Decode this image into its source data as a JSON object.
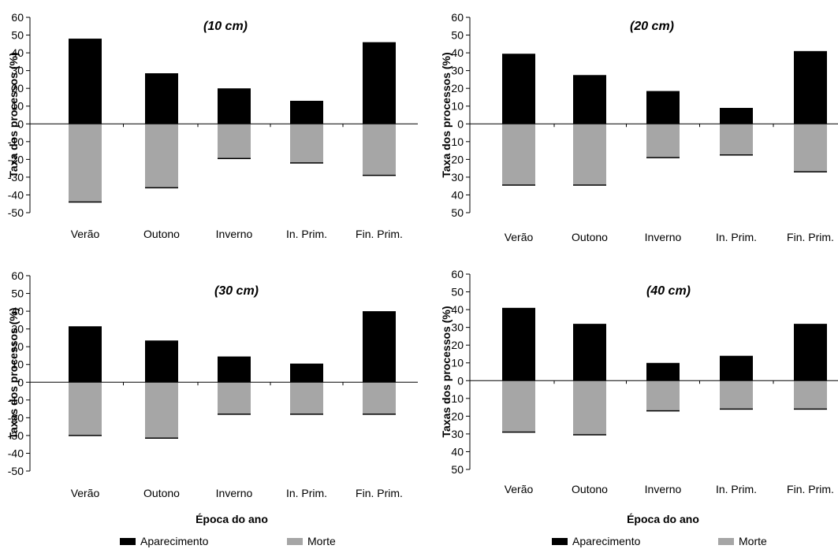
{
  "colors": {
    "appearance": "#000000",
    "death": "#a6a6a6",
    "axis": "#000000"
  },
  "shared_xlabel": "Época do ano",
  "legend": [
    {
      "label": "Aparecimento",
      "color": "#000000"
    },
    {
      "label": "Morte",
      "color": "#a6a6a6"
    }
  ],
  "chart_data": [
    {
      "type": "bar",
      "title": "(10 cm)",
      "ylabel": "Taxa dos processos (%)",
      "categories": [
        "Verão",
        "Outono",
        "Inverno",
        "In. Prim.",
        "Fin. Prim."
      ],
      "series": [
        {
          "name": "Aparecimento",
          "values": [
            48,
            28.5,
            20,
            13,
            46
          ]
        },
        {
          "name": "Morte",
          "values": [
            -44,
            -36,
            -19.5,
            -22,
            -29
          ]
        }
      ],
      "ylim": [
        -50,
        60
      ],
      "yticks": [
        60,
        50,
        40,
        30,
        20,
        10,
        0,
        -10,
        -20,
        -30,
        -40,
        -50
      ],
      "ytick_labels": [
        "60",
        "50",
        "40",
        "30",
        "20",
        "10",
        "0",
        "-10",
        "-20",
        "-30",
        "-40",
        "-50"
      ]
    },
    {
      "type": "bar",
      "title": "(20 cm)",
      "ylabel": "Taxa dos processos (%)",
      "categories": [
        "Verão",
        "Outono",
        "Inverno",
        "In. Prim.",
        "Fin. Prim."
      ],
      "series": [
        {
          "name": "Aparecimento",
          "values": [
            39.5,
            27.5,
            18.5,
            9,
            41
          ]
        },
        {
          "name": "Morte",
          "values": [
            -34.5,
            -34.5,
            -19,
            -17.5,
            -27
          ]
        }
      ],
      "ylim": [
        -50,
        60
      ],
      "yticks": [
        60,
        50,
        40,
        30,
        20,
        10,
        0,
        -10,
        -20,
        -30,
        -40,
        -50
      ],
      "ytick_labels": [
        "60",
        "50",
        "40",
        "30",
        "20",
        "10",
        "0",
        "10",
        "20",
        "30",
        "40",
        "50"
      ]
    },
    {
      "type": "bar",
      "title": "(30 cm)",
      "ylabel": "Taxas dos processos (%)",
      "categories": [
        "Verão",
        "Outono",
        "Inverno",
        "In. Prim.",
        "Fin. Prim."
      ],
      "series": [
        {
          "name": "Aparecimento",
          "values": [
            31.5,
            23.5,
            14.5,
            10.5,
            40
          ]
        },
        {
          "name": "Morte",
          "values": [
            -30,
            -31.5,
            -18,
            -18,
            -18
          ]
        }
      ],
      "ylim": [
        -50,
        60
      ],
      "yticks": [
        60,
        50,
        40,
        30,
        20,
        10,
        0,
        -10,
        -20,
        -30,
        -40,
        -50
      ],
      "ytick_labels": [
        "60",
        "50",
        "40",
        "30",
        "20",
        "10",
        "0",
        "-10",
        "-20",
        "-30",
        "-40",
        "-50"
      ]
    },
    {
      "type": "bar",
      "title": "(40 cm)",
      "ylabel": "Taxas dos processos (%)",
      "categories": [
        "Verão",
        "Outono",
        "Inverno",
        "In. Prim.",
        "Fin. Prim."
      ],
      "series": [
        {
          "name": "Aparecimento",
          "values": [
            41,
            32,
            10,
            14,
            32
          ]
        },
        {
          "name": "Morte",
          "values": [
            -29,
            -30.5,
            -17,
            -16,
            -16
          ]
        }
      ],
      "ylim": [
        -50,
        60
      ],
      "yticks": [
        60,
        50,
        40,
        30,
        20,
        10,
        0,
        -10,
        -20,
        -30,
        -40,
        -50
      ],
      "ytick_labels": [
        "60",
        "50",
        "40",
        "30",
        "20",
        "10",
        "0",
        "10",
        "20",
        "30",
        "40",
        "50"
      ]
    }
  ]
}
